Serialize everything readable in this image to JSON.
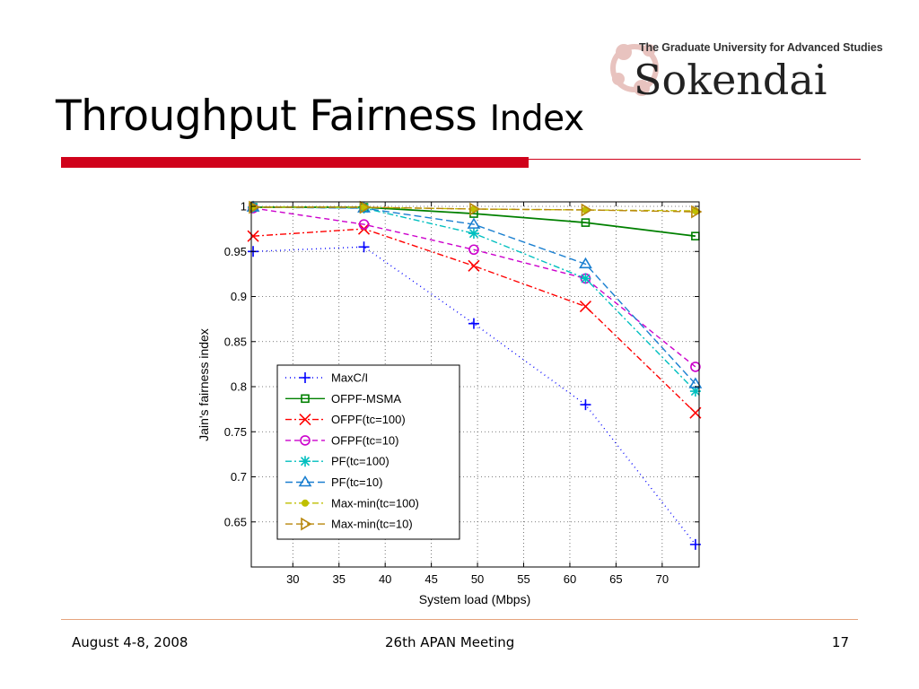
{
  "slide": {
    "title_main": "Throughput Fairness",
    "title_tail": "Index",
    "logo_subtitle": "The Graduate University for Advanced Studies",
    "logo_name": "Sokendai",
    "footer_left": "August 4-8, 2008",
    "footer_center": "26th APAN Meeting",
    "footer_right": "17",
    "accent_color": "#d0021b"
  },
  "chart_data": {
    "type": "line",
    "title": "",
    "xlabel": "System load (Mbps)",
    "ylabel": "Jain's fairness index",
    "xlim": [
      25.5,
      74
    ],
    "ylim": [
      0.6,
      1.005
    ],
    "xticks": [
      30,
      35,
      40,
      45,
      50,
      55,
      60,
      65,
      70
    ],
    "yticks": [
      0.65,
      0.7,
      0.75,
      0.8,
      0.85,
      0.9,
      0.95,
      1
    ],
    "ytick_labels": [
      "0.65",
      "0.7",
      "0.75",
      "0.8",
      "0.85",
      "0.9",
      "0.95",
      "1"
    ],
    "grid": true,
    "legend_position": "lower-left",
    "x": [
      25.7,
      37.7,
      49.6,
      61.7,
      73.6
    ],
    "series": [
      {
        "name": "MaxC/I",
        "color": "#0000ff",
        "dash": "1,4",
        "marker": "plus",
        "values": [
          0.95,
          0.955,
          0.87,
          0.78,
          0.625
        ]
      },
      {
        "name": "OFPF-MSMA",
        "color": "#008000",
        "dash": "",
        "marker": "square",
        "values": [
          0.999,
          0.999,
          0.992,
          0.982,
          0.967
        ]
      },
      {
        "name": "OFPF(tc=100)",
        "color": "#ff0000",
        "dash": "7,3,2,3",
        "marker": "x",
        "values": [
          0.967,
          0.975,
          0.934,
          0.889,
          0.771
        ]
      },
      {
        "name": "OFPF(tc=10)",
        "color": "#cc00cc",
        "dash": "6,4",
        "marker": "circle",
        "values": [
          0.998,
          0.98,
          0.952,
          0.92,
          0.822
        ]
      },
      {
        "name": "PF(tc=100)",
        "color": "#00bfbf",
        "dash": "7,3,2,3",
        "marker": "star",
        "values": [
          0.999,
          0.998,
          0.97,
          0.92,
          0.795
        ]
      },
      {
        "name": "PF(tc=10)",
        "color": "#1a7fd0",
        "dash": "8,4",
        "marker": "triangle",
        "values": [
          0.999,
          0.998,
          0.98,
          0.936,
          0.803
        ]
      },
      {
        "name": "Max-min(tc=100)",
        "color": "#bfbf00",
        "dash": "7,3,2,3",
        "marker": "dot",
        "values": [
          0.999,
          0.999,
          0.997,
          0.996,
          0.995
        ]
      },
      {
        "name": "Max-min(tc=10)",
        "color": "#b8860b",
        "dash": "8,4",
        "marker": "triangle-right",
        "values": [
          0.999,
          0.999,
          0.997,
          0.996,
          0.994
        ]
      }
    ]
  }
}
